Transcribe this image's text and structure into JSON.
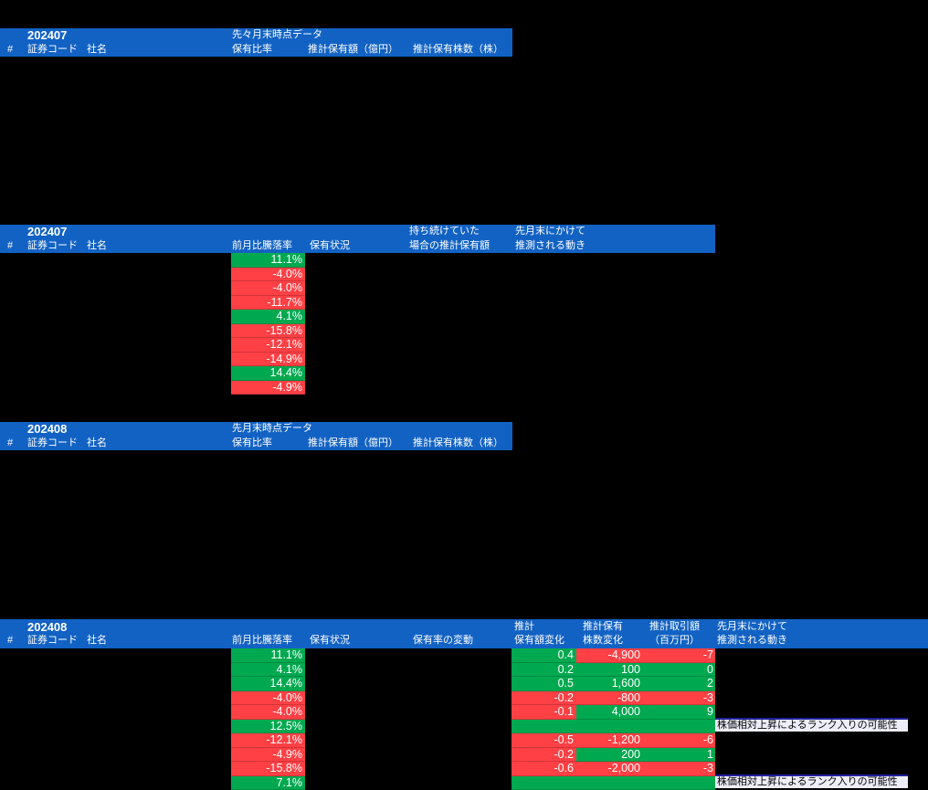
{
  "colors": {
    "background": "#000000",
    "header_blue": "#1262C4",
    "positive_green": "#00A950",
    "negative_red": "#FF4045",
    "annotation_bg": "#EDEEF9",
    "annotation_border": "#20209E",
    "header_text": "#FFFFFF",
    "cell_text": "#FFFFFF",
    "annotation_text": "#000000"
  },
  "table_prev2": {
    "month": "202407",
    "subtitle": "先々月末時点データ",
    "columns": {
      "num": "#",
      "code": "証券コード",
      "name": "社名",
      "ratio": "保有比率",
      "amount": "推計保有額（億円）",
      "shares": "推計保有株数（株）"
    }
  },
  "table_change_prev": {
    "month": "202407",
    "columns": {
      "num": "#",
      "code": "証券コード",
      "name": "社名",
      "change": "前月比騰落率",
      "status": "保有状況",
      "hold_line1": "持ち続けていた",
      "hold_line2": "場合の推計保有額",
      "move_line1": "先月末にかけて",
      "move_line2": "推測される動き"
    },
    "rows": [
      {
        "change": "11.1%",
        "tone": "green"
      },
      {
        "change": "-4.0%",
        "tone": "red"
      },
      {
        "change": "-4.0%",
        "tone": "red"
      },
      {
        "change": "-11.7%",
        "tone": "red"
      },
      {
        "change": "4.1%",
        "tone": "green"
      },
      {
        "change": "-15.8%",
        "tone": "red"
      },
      {
        "change": "-12.1%",
        "tone": "red"
      },
      {
        "change": "-14.9%",
        "tone": "red"
      },
      {
        "change": "14.4%",
        "tone": "green"
      },
      {
        "change": "-4.9%",
        "tone": "red"
      }
    ]
  },
  "table_prev1": {
    "month": "202408",
    "subtitle": "先月末時点データ",
    "columns": {
      "num": "#",
      "code": "証券コード",
      "name": "社名",
      "ratio": "保有比率",
      "amount": "推計保有額（億円）",
      "shares": "推計保有株数（株）"
    }
  },
  "table_change_now": {
    "month": "202408",
    "columns": {
      "num": "#",
      "code": "証券コード",
      "name": "社名",
      "change": "前月比騰落率",
      "status": "保有状況",
      "ratio_change": "保有率の変動",
      "amount_line1": "推計",
      "amount_line2": "保有額変化",
      "shares_line1": "推計保有",
      "shares_line2": "株数変化",
      "trade_line1": "推計取引額",
      "trade_line2": "（百万円）",
      "move_line1": "先月末にかけて",
      "move_line2": "推測される動き"
    },
    "rows": [
      {
        "change": "11.1%",
        "change_tone": "green",
        "amount": "0.4",
        "amount_tone": "green",
        "shares": "-4,900",
        "shares_tone": "red",
        "trade": "-7",
        "trade_tone": "red",
        "note": ""
      },
      {
        "change": "4.1%",
        "change_tone": "green",
        "amount": "0.2",
        "amount_tone": "green",
        "shares": "100",
        "shares_tone": "green",
        "trade": "0",
        "trade_tone": "green",
        "note": ""
      },
      {
        "change": "14.4%",
        "change_tone": "green",
        "amount": "0.5",
        "amount_tone": "green",
        "shares": "1,600",
        "shares_tone": "green",
        "trade": "2",
        "trade_tone": "green",
        "note": ""
      },
      {
        "change": "-4.0%",
        "change_tone": "red",
        "amount": "-0.2",
        "amount_tone": "red",
        "shares": "-800",
        "shares_tone": "red",
        "trade": "-3",
        "trade_tone": "red",
        "note": ""
      },
      {
        "change": "-4.0%",
        "change_tone": "red",
        "amount": "-0.1",
        "amount_tone": "red",
        "shares": "4,000",
        "shares_tone": "green",
        "trade": "9",
        "trade_tone": "green",
        "note": ""
      },
      {
        "change": "12.5%",
        "change_tone": "green",
        "amount": "",
        "amount_tone": "green",
        "shares": "",
        "shares_tone": "green",
        "trade": "",
        "trade_tone": "green",
        "note": "株価相対上昇によるランク入りの可能性"
      },
      {
        "change": "-12.1%",
        "change_tone": "red",
        "amount": "-0.5",
        "amount_tone": "red",
        "shares": "-1,200",
        "shares_tone": "red",
        "trade": "-6",
        "trade_tone": "red",
        "note": ""
      },
      {
        "change": "-4.9%",
        "change_tone": "red",
        "amount": "-0.2",
        "amount_tone": "red",
        "shares": "200",
        "shares_tone": "green",
        "trade": "1",
        "trade_tone": "green",
        "note": ""
      },
      {
        "change": "-15.8%",
        "change_tone": "red",
        "amount": "-0.6",
        "amount_tone": "red",
        "shares": "-2,000",
        "shares_tone": "red",
        "trade": "-3",
        "trade_tone": "red",
        "note": ""
      },
      {
        "change": "7.1%",
        "change_tone": "green",
        "amount": "",
        "amount_tone": "green",
        "shares": "",
        "shares_tone": "green",
        "trade": "",
        "trade_tone": "green",
        "note": "株価相対上昇によるランク入りの可能性"
      }
    ]
  }
}
